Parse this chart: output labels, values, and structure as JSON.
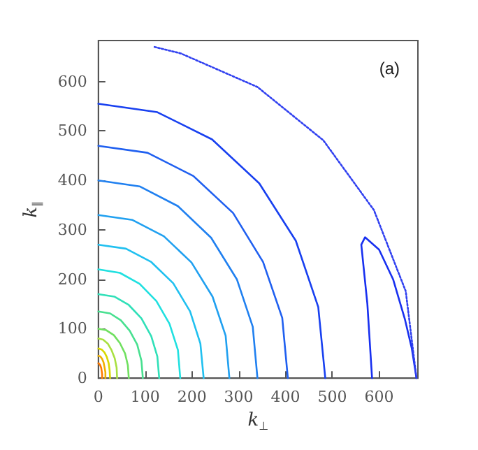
{
  "chart_data": {
    "type": "line",
    "xlabel": "k$_{⊥}$",
    "ylabel": "k$_{∥}$",
    "annotations": [
      "(a)"
    ],
    "xlim": [
      0,
      683
    ],
    "ylim": [
      0,
      683
    ],
    "xticks": [
      0,
      100,
      200,
      300,
      400,
      500,
      600
    ],
    "yticks": [
      0,
      100,
      200,
      300,
      400,
      500,
      600
    ],
    "grid": false,
    "marker": "none",
    "line_style": "solid",
    "series": [
      {
        "color": "#ff7a00",
        "x": [
          0,
          2,
          4,
          6,
          7,
          8,
          8
        ],
        "values": [
          30,
          29,
          26,
          21,
          15,
          8,
          0
        ]
      },
      {
        "color": "#f0b000",
        "x": [
          0,
          4,
          8,
          11,
          13,
          15,
          15
        ],
        "values": [
          45,
          44,
          39,
          32,
          23,
          12,
          0
        ]
      },
      {
        "color": "#d8d800",
        "x": [
          0,
          7,
          13,
          18,
          22,
          24,
          25
        ],
        "values": [
          60,
          58,
          52,
          43,
          30,
          16,
          0
        ]
      },
      {
        "color": "#a8e040",
        "x": [
          0,
          10,
          20,
          28,
          35,
          39,
          40
        ],
        "values": [
          80,
          78,
          70,
          57,
          40,
          21,
          0
        ]
      },
      {
        "color": "#70e060",
        "x": [
          0,
          17,
          33,
          46,
          57,
          63,
          65
        ],
        "values": [
          100,
          97,
          87,
          71,
          50,
          26,
          0
        ]
      },
      {
        "color": "#48e090",
        "x": [
          0,
          25,
          48,
          67,
          83,
          92,
          95
        ],
        "values": [
          135,
          131,
          117,
          96,
          68,
          35,
          0
        ]
      },
      {
        "color": "#30e0b8",
        "x": [
          0,
          34,
          65,
          92,
          113,
          126,
          130
        ],
        "values": [
          170,
          165,
          148,
          121,
          85,
          44,
          0
        ]
      },
      {
        "color": "#20e0e0",
        "x": [
          0,
          46,
          88,
          124,
          152,
          170,
          175
        ],
        "values": [
          220,
          213,
          191,
          156,
          110,
          57,
          0
        ]
      },
      {
        "color": "#20c0f0",
        "x": [
          0,
          59,
          113,
          160,
          196,
          218,
          225
        ],
        "values": [
          270,
          262,
          235,
          192,
          135,
          70,
          0
        ]
      },
      {
        "color": "#20a0f0",
        "x": [
          0,
          73,
          140,
          199,
          244,
          272,
          280
        ],
        "values": [
          330,
          320,
          287,
          234,
          165,
          86,
          0
        ]
      },
      {
        "color": "#2080f0",
        "x": [
          0,
          88,
          170,
          241,
          296,
          330,
          340
        ],
        "values": [
          400,
          388,
          348,
          284,
          200,
          104,
          0
        ]
      },
      {
        "color": "#2060f0",
        "x": [
          0,
          105,
          203,
          288,
          352,
          393,
          405
        ],
        "values": [
          470,
          456,
          409,
          334,
          235,
          122,
          0
        ]
      },
      {
        "color": "#1840f0",
        "x": [
          0,
          126,
          243,
          344,
          422,
          470,
          485
        ],
        "values": [
          555,
          538,
          483,
          394,
          278,
          144,
          0
        ]
      },
      {
        "color": "#1830f0",
        "x": [
          585,
          575,
          562,
          570,
          600,
          630,
          655,
          670,
          680
        ],
        "values": [
          0,
          150,
          270,
          285,
          260,
          200,
          120,
          60,
          0
        ]
      },
      {
        "color": "#3040f0",
        "line_style": "dotted",
        "x": [
          120,
          176,
          340,
          481,
          589,
          657,
          680
        ],
        "values": [
          670,
          657,
          589,
          481,
          340,
          176,
          0
        ]
      }
    ]
  }
}
